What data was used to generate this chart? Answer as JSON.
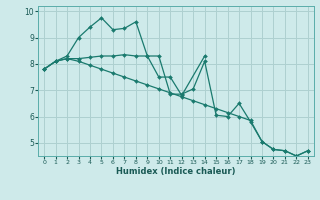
{
  "xlabel": "Humidex (Indice chaleur)",
  "background_color": "#ceeaea",
  "grid_color": "#aed0d0",
  "line_color": "#1a7a6e",
  "xlim": [
    -0.5,
    23.5
  ],
  "ylim": [
    4.5,
    10.2
  ],
  "yticks": [
    5,
    6,
    7,
    8,
    9,
    10
  ],
  "xticks": [
    0,
    1,
    2,
    3,
    4,
    5,
    6,
    7,
    8,
    9,
    10,
    11,
    12,
    13,
    14,
    15,
    16,
    17,
    18,
    19,
    20,
    21,
    22,
    23
  ],
  "series1_x": [
    0,
    1,
    2,
    3,
    4,
    5,
    6,
    7,
    8,
    9,
    10,
    11,
    12,
    14
  ],
  "series1_y": [
    7.8,
    8.1,
    8.3,
    9.0,
    9.4,
    9.75,
    9.3,
    9.35,
    9.6,
    8.3,
    7.5,
    7.5,
    6.8,
    8.3
  ],
  "series2_x": [
    0,
    1,
    2,
    3,
    4,
    5,
    6,
    7,
    8,
    9,
    10,
    11,
    12,
    13,
    14,
    15,
    16,
    17,
    18,
    19,
    20,
    21,
    22,
    23
  ],
  "series2_y": [
    7.8,
    8.1,
    8.2,
    8.2,
    8.25,
    8.3,
    8.3,
    8.35,
    8.3,
    8.3,
    8.3,
    6.85,
    6.85,
    7.05,
    8.1,
    6.05,
    6.0,
    6.5,
    5.8,
    5.05,
    4.75,
    4.7,
    4.5,
    4.7
  ],
  "series3_x": [
    0,
    1,
    2,
    3,
    4,
    5,
    6,
    7,
    8,
    9,
    10,
    11,
    12,
    13,
    14,
    15,
    16,
    17,
    18,
    19,
    20,
    21,
    22,
    23
  ],
  "series3_y": [
    7.8,
    8.1,
    8.2,
    8.1,
    7.95,
    7.8,
    7.65,
    7.5,
    7.35,
    7.2,
    7.05,
    6.9,
    6.75,
    6.6,
    6.45,
    6.3,
    6.15,
    6.0,
    5.85,
    5.05,
    4.75,
    4.7,
    4.5,
    4.7
  ]
}
